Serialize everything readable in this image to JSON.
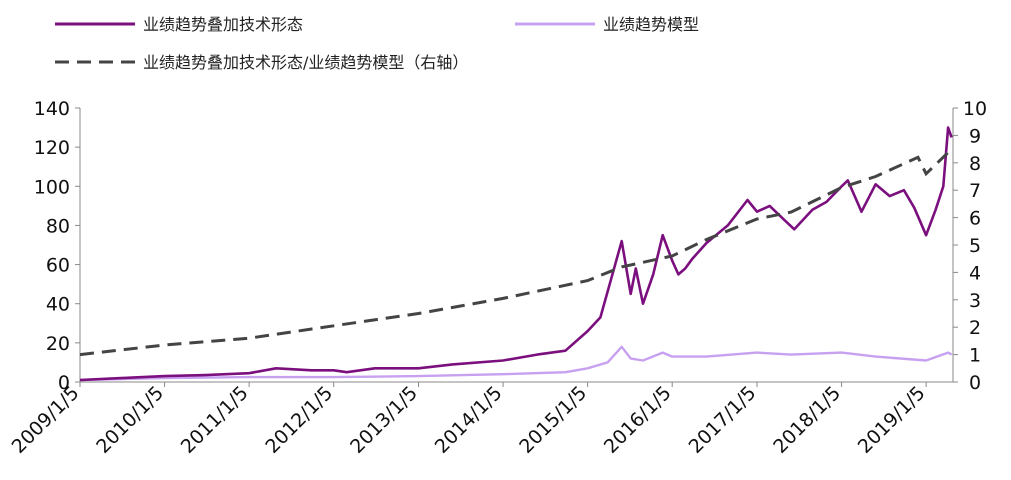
{
  "chart_data": {
    "type": "line",
    "title": "",
    "xlabel": "",
    "ylabel": "",
    "x_ticks": [
      "2009/1/5",
      "2010/1/5",
      "2011/1/5",
      "2012/1/5",
      "2013/1/5",
      "2014/1/5",
      "2015/1/5",
      "2016/1/5",
      "2017/1/5",
      "2018/1/5",
      "2019/1/5"
    ],
    "ylim_left": [
      0,
      140
    ],
    "yticks_left": [
      "0",
      "20",
      "40",
      "60",
      "80",
      "100",
      "120",
      "140"
    ],
    "ylim_right": [
      0,
      10
    ],
    "yticks_right": [
      "0",
      "1",
      "2",
      "3",
      "4",
      "5",
      "6",
      "7",
      "8",
      "9",
      "10"
    ],
    "grid": false,
    "legend_position": "top",
    "series": [
      {
        "name": "业绩趋势叠加技术形态",
        "axis": "left",
        "color": "#7B0F7E",
        "style": "solid",
        "points": [
          [
            "2009-01-05",
            1
          ],
          [
            "2009-07-01",
            2
          ],
          [
            "2010-01-05",
            3
          ],
          [
            "2010-07-01",
            3.5
          ],
          [
            "2011-01-05",
            4.5
          ],
          [
            "2011-05-01",
            7
          ],
          [
            "2011-10-01",
            6
          ],
          [
            "2012-01-05",
            6
          ],
          [
            "2012-03-01",
            5
          ],
          [
            "2012-07-01",
            7
          ],
          [
            "2013-01-05",
            7
          ],
          [
            "2013-06-01",
            9
          ],
          [
            "2014-01-05",
            11
          ],
          [
            "2014-06-01",
            14
          ],
          [
            "2014-10-01",
            16
          ],
          [
            "2015-01-05",
            26
          ],
          [
            "2015-03-01",
            33
          ],
          [
            "2015-04-15",
            52
          ],
          [
            "2015-06-01",
            72
          ],
          [
            "2015-07-10",
            45
          ],
          [
            "2015-08-01",
            58
          ],
          [
            "2015-09-01",
            40
          ],
          [
            "2015-10-15",
            55
          ],
          [
            "2015-11-25",
            75
          ],
          [
            "2016-01-05",
            62
          ],
          [
            "2016-02-01",
            55
          ],
          [
            "2016-03-01",
            58
          ],
          [
            "2016-04-01",
            63
          ],
          [
            "2016-06-01",
            71
          ],
          [
            "2016-09-01",
            80
          ],
          [
            "2016-11-25",
            93
          ],
          [
            "2017-01-05",
            87
          ],
          [
            "2017-03-01",
            90
          ],
          [
            "2017-05-01",
            83
          ],
          [
            "2017-06-15",
            78
          ],
          [
            "2017-09-01",
            88
          ],
          [
            "2017-11-01",
            92
          ],
          [
            "2018-01-05",
            100
          ],
          [
            "2018-02-01",
            103
          ],
          [
            "2018-04-01",
            87
          ],
          [
            "2018-06-01",
            101
          ],
          [
            "2018-08-01",
            95
          ],
          [
            "2018-10-01",
            98
          ],
          [
            "2018-11-15",
            89
          ],
          [
            "2019-01-05",
            75
          ],
          [
            "2019-02-15",
            88
          ],
          [
            "2019-03-20",
            100
          ],
          [
            "2019-04-10",
            130
          ],
          [
            "2019-04-25",
            125
          ]
        ]
      },
      {
        "name": "业绩趋势模型",
        "axis": "left",
        "color": "#C7A0F0",
        "style": "solid",
        "points": [
          [
            "2009-01-05",
            1
          ],
          [
            "2010-01-05",
            2
          ],
          [
            "2011-01-05",
            2.5
          ],
          [
            "2012-01-05",
            2.5
          ],
          [
            "2013-01-05",
            3
          ],
          [
            "2014-01-05",
            4
          ],
          [
            "2014-10-01",
            5
          ],
          [
            "2015-01-05",
            7
          ],
          [
            "2015-04-01",
            10
          ],
          [
            "2015-06-01",
            18
          ],
          [
            "2015-07-10",
            12
          ],
          [
            "2015-09-01",
            11
          ],
          [
            "2015-11-25",
            15
          ],
          [
            "2016-01-05",
            13
          ],
          [
            "2016-06-01",
            13
          ],
          [
            "2017-01-05",
            15
          ],
          [
            "2017-06-01",
            14
          ],
          [
            "2018-01-05",
            15
          ],
          [
            "2018-06-01",
            13
          ],
          [
            "2019-01-05",
            11
          ],
          [
            "2019-04-10",
            15
          ],
          [
            "2019-04-25",
            14
          ]
        ]
      },
      {
        "name": "业绩趋势叠加技术形态/业绩趋势模型（右轴）",
        "axis": "right",
        "color": "#444444",
        "style": "dashed",
        "points": [
          [
            "2009-01-05",
            1.0
          ],
          [
            "2010-01-05",
            1.35
          ],
          [
            "2011-01-05",
            1.6
          ],
          [
            "2012-01-05",
            2.05
          ],
          [
            "2013-01-05",
            2.5
          ],
          [
            "2014-01-05",
            3.05
          ],
          [
            "2015-01-05",
            3.7
          ],
          [
            "2015-06-01",
            4.2
          ],
          [
            "2016-01-05",
            4.6
          ],
          [
            "2016-06-01",
            5.2
          ],
          [
            "2017-01-05",
            5.95
          ],
          [
            "2017-06-01",
            6.2
          ],
          [
            "2018-01-05",
            7.1
          ],
          [
            "2018-06-01",
            7.5
          ],
          [
            "2018-12-01",
            8.2
          ],
          [
            "2019-01-05",
            7.6
          ],
          [
            "2019-04-25",
            8.5
          ]
        ]
      }
    ]
  }
}
